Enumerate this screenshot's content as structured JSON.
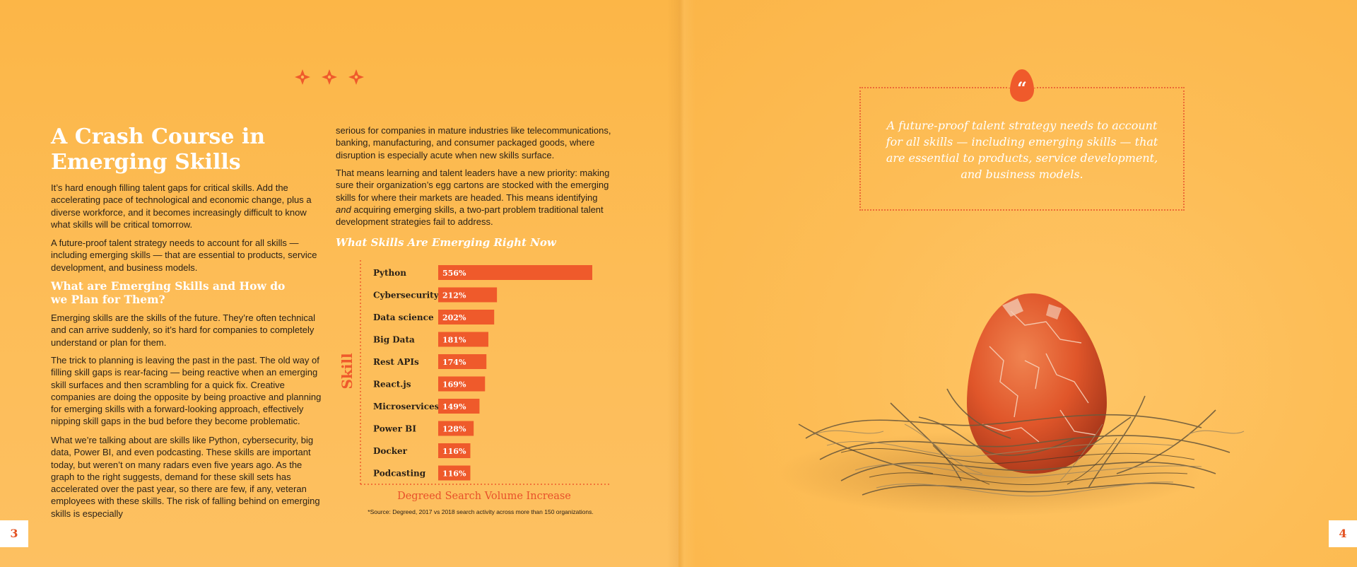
{
  "left": {
    "title": "A Crash Course in Emerging Skills",
    "paragraphs": {
      "p1": "It’s hard enough filling talent gaps for critical skills. Add the accelerating pace of technological and economic change, plus a diverse workforce, and it becomes increasingly difficult to know what skills will be critical tomorrow.",
      "p2": "A future-proof talent strategy needs to account for all skills — including emerging skills — that are essential to products, service development, and business models.",
      "p3": "Emerging skills are the skills of the future. They’re often technical and can arrive suddenly, so it’s hard for companies to completely understand or plan for them.",
      "p4": "The trick to planning is leaving the past in the past. The old way of filling skill gaps is rear-facing — being reactive when an emerging skill surfaces and then scrambling for a quick fix. Creative companies are doing the opposite by being proactive and planning for emerging skills with a forward-looking approach, effectively nipping skill gaps in the bud before they become problematic.",
      "p5": "What we’re talking about are skills like Python, cybersecurity, big data, Power BI, and even podcasting. These skills are important today, but weren’t on many radars even five years ago. As the graph to the right suggests, demand for these skill sets has accelerated over the past year, so there are few, if any, veteran employees with these skills. The risk of falling behind on emerging skills is especially"
    },
    "subhead": "What are Emerging Skills and How do we Plan for Them?"
  },
  "middle": {
    "p6": "serious for companies in mature industries like telecommunications, banking, manufacturing, and consumer packaged goods, where disruption is especially acute when new skills surface.",
    "p7_a": "That means learning and talent leaders have a new priority: making sure their organization’s egg cartons are stocked with the emerging skills for where their markets are headed. This means identifying ",
    "p7_em": "and",
    "p7_b": " acquiring emerging skills, a two-part problem traditional talent development strategies fail to address."
  },
  "chart_data": {
    "type": "bar",
    "orientation": "horizontal",
    "title": "What Skills Are Emerging Right Now",
    "xlabel": "Degreed Search Volume Increase",
    "ylabel": "Skill",
    "categories": [
      "Python",
      "Cybersecurity",
      "Data science",
      "Big Data",
      "Rest APIs",
      "React.js",
      "Microservices",
      "Power BI",
      "Docker",
      "Podcasting"
    ],
    "values": [
      556,
      212,
      202,
      181,
      174,
      169,
      149,
      128,
      116,
      116
    ],
    "value_labels": [
      "556%",
      "212%",
      "202%",
      "181%",
      "174%",
      "169%",
      "149%",
      "128%",
      "116%",
      "116%"
    ],
    "unit": "%",
    "xlim": [
      0,
      556
    ],
    "source": "*Source: Degreed, 2017 vs 2018 search activity across more than 150 organizations."
  },
  "pages": {
    "left_number": "3",
    "right_number": "4"
  },
  "quote": {
    "text": "A future-proof talent strategy needs to account for all skills — including emerging skills — that are essential to products, service development, and business models."
  },
  "colors": {
    "accent": "#ef5a2b",
    "background": "#fdbd56",
    "text": "#2b2218",
    "heading": "#ffffff"
  },
  "icons": {
    "ornament": "diamond-ornament-icon",
    "quote": "quote-egg-icon"
  }
}
